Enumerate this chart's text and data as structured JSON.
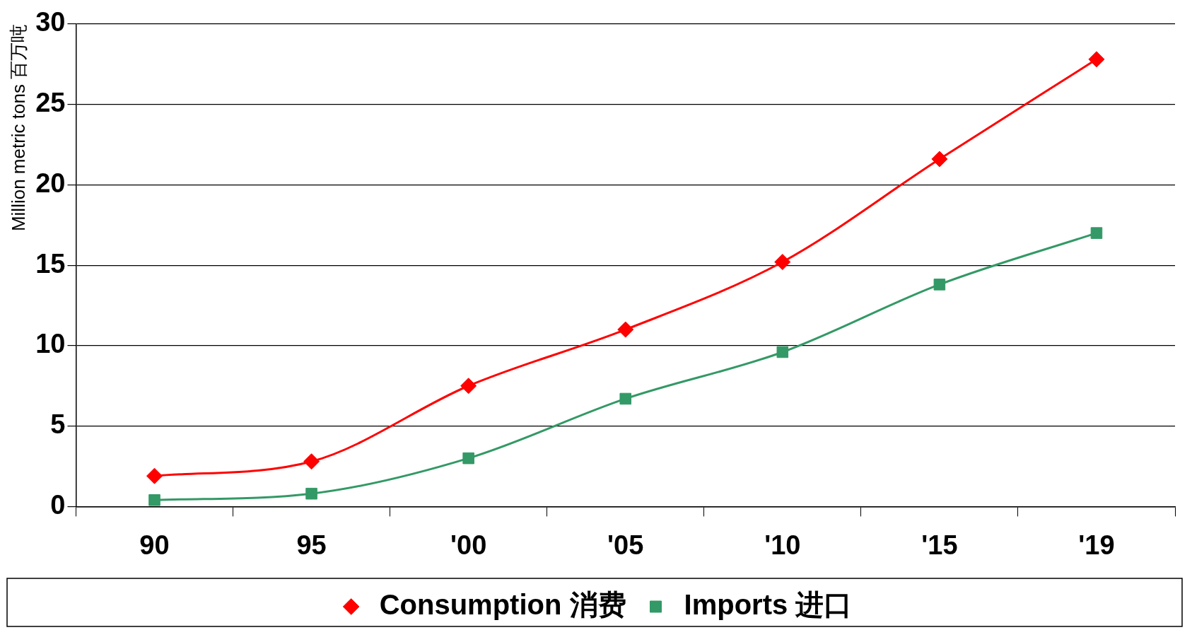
{
  "chart_data": {
    "type": "line",
    "ylabel": "Million metric tons 百万吨",
    "categories": [
      "90",
      "95",
      "'00",
      "'05",
      "'10",
      "'15",
      "'19"
    ],
    "series": [
      {
        "name": "Consumption 消费",
        "color": "#ff0000",
        "marker": "diamond",
        "values": [
          1.9,
          2.8,
          7.5,
          11.0,
          15.2,
          21.6,
          27.8
        ]
      },
      {
        "name": "Imports 进口",
        "color": "#339966",
        "marker": "square",
        "values": [
          0.4,
          0.8,
          3.0,
          6.7,
          9.6,
          13.8,
          17.0
        ]
      }
    ],
    "ylim": [
      0,
      30
    ],
    "yticks": [
      0,
      5,
      10,
      15,
      20,
      25,
      30
    ],
    "grid": "y",
    "legend": "bottom"
  }
}
